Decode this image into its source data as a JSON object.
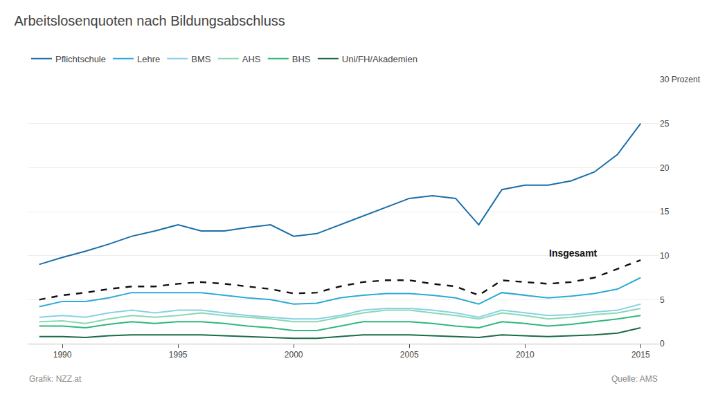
{
  "chart_data": {
    "type": "line",
    "title": "Arbeitslosenquoten nach Bildungsabschluss",
    "footer_left": "Grafik: NZZ.at",
    "footer_right": "Quelle: AMS",
    "annotations": [
      {
        "text": "Insgesamt",
        "x": 2013.2,
        "y": 10.3
      }
    ],
    "x": [
      1989,
      1990,
      1991,
      1992,
      1993,
      1994,
      1995,
      1996,
      1997,
      1998,
      1999,
      2000,
      2001,
      2002,
      2003,
      2004,
      2005,
      2006,
      2007,
      2008,
      2009,
      2010,
      2011,
      2012,
      2013,
      2014,
      2015
    ],
    "series": [
      {
        "name": "Uni/FH/Akademien",
        "color": "#1a6b45",
        "values": [
          0.8,
          0.8,
          0.7,
          0.9,
          1.0,
          1.0,
          1.0,
          1.0,
          0.9,
          0.8,
          0.7,
          0.6,
          0.6,
          0.8,
          1.0,
          1.0,
          1.0,
          0.9,
          0.8,
          0.7,
          1.0,
          0.9,
          0.8,
          0.9,
          1.0,
          1.2,
          1.8
        ]
      },
      {
        "name": "BHS",
        "color": "#2eb87a",
        "values": [
          2.0,
          2.0,
          1.8,
          2.2,
          2.5,
          2.3,
          2.5,
          2.5,
          2.3,
          2.0,
          1.8,
          1.5,
          1.5,
          2.0,
          2.5,
          2.5,
          2.5,
          2.3,
          2.0,
          1.8,
          2.5,
          2.3,
          2.0,
          2.2,
          2.5,
          2.8,
          3.2
        ]
      },
      {
        "name": "AHS",
        "color": "#88d9b0",
        "values": [
          2.5,
          2.6,
          2.3,
          2.8,
          3.2,
          3.0,
          3.2,
          3.5,
          3.2,
          3.0,
          2.8,
          2.5,
          2.5,
          3.0,
          3.5,
          3.8,
          3.8,
          3.5,
          3.2,
          2.8,
          3.5,
          3.2,
          2.8,
          3.0,
          3.3,
          3.5,
          4.0
        ]
      },
      {
        "name": "BMS",
        "color": "#88d0e8",
        "values": [
          3.0,
          3.2,
          3.0,
          3.5,
          3.8,
          3.5,
          3.8,
          3.8,
          3.5,
          3.2,
          3.0,
          2.8,
          2.8,
          3.2,
          3.8,
          4.0,
          4.0,
          3.8,
          3.5,
          3.0,
          3.8,
          3.5,
          3.2,
          3.3,
          3.6,
          3.8,
          4.5
        ]
      },
      {
        "name": "Lehre",
        "color": "#2eaad4",
        "values": [
          4.2,
          4.8,
          4.8,
          5.2,
          5.8,
          5.8,
          5.8,
          5.8,
          5.5,
          5.2,
          5.0,
          4.5,
          4.6,
          5.2,
          5.5,
          5.7,
          5.7,
          5.5,
          5.2,
          4.5,
          5.8,
          5.5,
          5.2,
          5.4,
          5.7,
          6.2,
          7.5
        ]
      },
      {
        "name": "Pflichtschule",
        "color": "#1a6ea8",
        "values": [
          9.0,
          9.8,
          10.5,
          11.3,
          12.2,
          12.8,
          13.5,
          12.8,
          12.8,
          13.2,
          13.5,
          12.2,
          12.5,
          13.5,
          14.5,
          15.5,
          16.5,
          16.8,
          16.5,
          13.5,
          17.5,
          18.0,
          18.0,
          18.5,
          19.5,
          21.5,
          25.0
        ]
      },
      {
        "color": "#111111",
        "line_style": "dashed",
        "values": [
          5.0,
          5.5,
          5.8,
          6.2,
          6.5,
          6.5,
          6.8,
          7.0,
          6.8,
          6.5,
          6.2,
          5.7,
          5.8,
          6.5,
          7.0,
          7.2,
          7.2,
          6.8,
          6.5,
          5.5,
          7.2,
          7.0,
          6.8,
          7.0,
          7.5,
          8.5,
          9.5
        ]
      }
    ],
    "xlim": [
      1988.5,
      2015.8
    ],
    "xticks": [
      1990,
      1995,
      2000,
      2005,
      2010,
      2015
    ],
    "ylim": [
      0,
      30
    ],
    "yticks": [
      0,
      5,
      10,
      15,
      20,
      25,
      {
        "value": 30,
        "label": "30 Prozent"
      }
    ],
    "grid": true,
    "legend": "top left"
  }
}
